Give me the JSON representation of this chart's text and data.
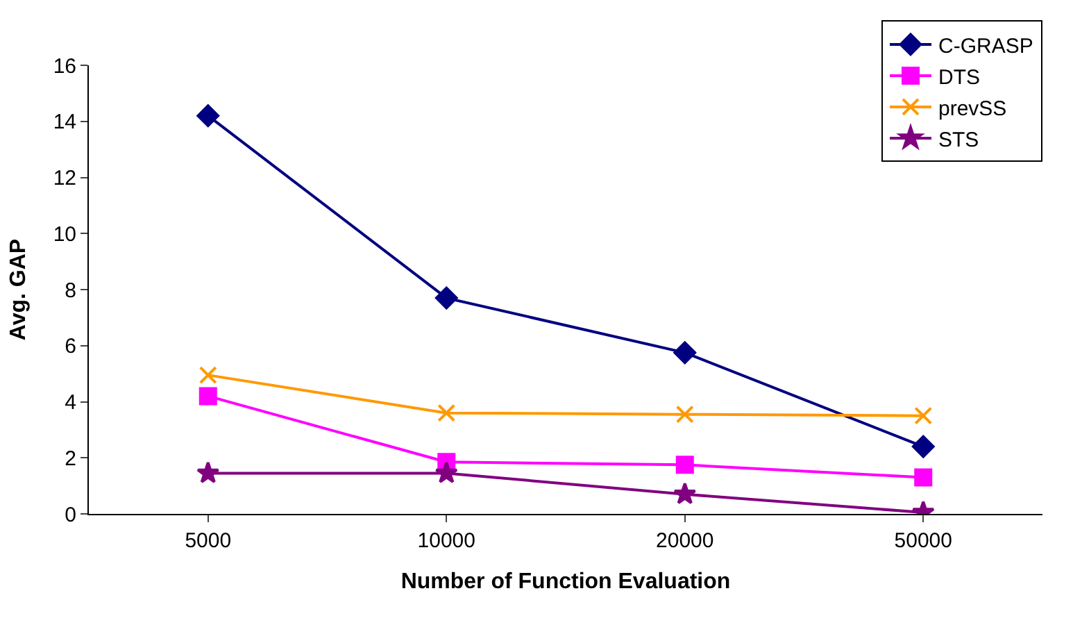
{
  "chart_data": {
    "type": "line",
    "xlabel": "Number of Function Evaluation",
    "ylabel": "Avg. GAP",
    "categories": [
      "5000",
      "10000",
      "20000",
      "50000"
    ],
    "series": [
      {
        "name": "C-GRASP",
        "color": "#000080",
        "marker": "diamond",
        "values": [
          14.2,
          7.7,
          5.75,
          2.4
        ]
      },
      {
        "name": "DTS",
        "color": "#ff00ff",
        "marker": "square",
        "values": [
          4.2,
          1.85,
          1.75,
          1.3
        ]
      },
      {
        "name": "prevSS",
        "color": "#ff9900",
        "marker": "cross",
        "values": [
          4.95,
          3.6,
          3.55,
          3.5
        ]
      },
      {
        "name": "STS",
        "color": "#800080",
        "marker": "star",
        "values": [
          1.45,
          1.45,
          0.7,
          0.05
        ]
      }
    ],
    "ylim": [
      0,
      16
    ],
    "yticks": [
      0,
      2,
      4,
      6,
      8,
      10,
      12,
      14,
      16
    ],
    "grid": false,
    "legend": "top right",
    "line_style": "solid"
  }
}
